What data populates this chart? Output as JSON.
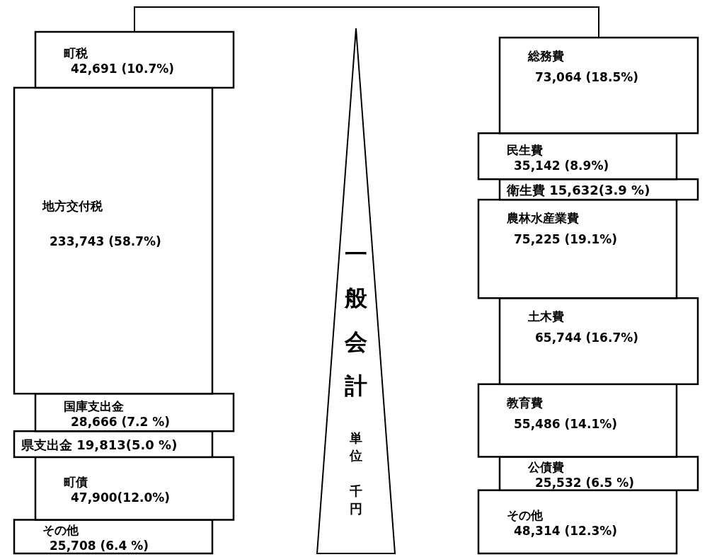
{
  "chart_data": {
    "type": "bar",
    "stacked": true,
    "title": "一般会計",
    "annotations": [
      "単位",
      "千円"
    ],
    "categories": [
      null,
      null
    ],
    "series": [
      {
        "name": "その他",
        "color": "#ffffff",
        "values": [
          25708,
          null
        ],
        "value_labels": [
          "25,708 (6.4 %)",
          null
        ]
      },
      {
        "name": "町債",
        "color": "#ffffff",
        "values": [
          47900,
          null
        ],
        "value_labels": [
          "47,900(12.0%)",
          null
        ]
      },
      {
        "name": "県支出金",
        "color": "#ffffff",
        "values": [
          19813,
          null
        ],
        "value_labels": [
          "19,813(5.0 %)",
          null
        ]
      },
      {
        "name": "国庫支出金",
        "color": "#ffffff",
        "values": [
          28666,
          null
        ],
        "value_labels": [
          "28,666 (7.2 %)",
          null
        ]
      },
      {
        "name": "地方交付税",
        "color": "#ffffff",
        "values": [
          233743,
          null
        ],
        "value_labels": [
          "233,743 (58.7%)",
          null
        ]
      },
      {
        "name": "町税",
        "color": "#ffffff",
        "values": [
          42691,
          null
        ],
        "value_labels": [
          "42,691 (10.7%)",
          null
        ]
      },
      {
        "name": "その他",
        "color": "#ffffff",
        "values": [
          null,
          48314
        ],
        "value_labels": [
          null,
          "48,314 (12.3%)"
        ]
      },
      {
        "name": "公債費",
        "color": "#ffffff",
        "values": [
          null,
          25532
        ],
        "value_labels": [
          null,
          "25,532 (6.5 %)"
        ]
      },
      {
        "name": "教育費",
        "color": "#ffffff",
        "values": [
          null,
          55486
        ],
        "value_labels": [
          null,
          "55,486 (14.1%)"
        ]
      },
      {
        "name": "土木費",
        "color": "#ffffff",
        "values": [
          null,
          65744
        ],
        "value_labels": [
          null,
          "65,744 (16.7%)"
        ]
      },
      {
        "name": "農林水産業費",
        "color": "#ffffff",
        "values": [
          null,
          75225
        ],
        "value_labels": [
          null,
          "75,225 (19.1%)"
        ]
      },
      {
        "name": "衛生費",
        "color": "#ffffff",
        "values": [
          null,
          15632
        ],
        "value_labels": [
          null,
          "15,632(3.9 %)"
        ]
      },
      {
        "name": "民生費",
        "color": "#ffffff",
        "values": [
          null,
          35142
        ],
        "value_labels": [
          null,
          "35,142 (8.9%)"
        ]
      },
      {
        "name": "総務費",
        "color": "#ffffff",
        "values": [
          null,
          73064
        ],
        "value_labels": [
          null,
          "73,064 (18.5%)"
        ]
      }
    ]
  }
}
